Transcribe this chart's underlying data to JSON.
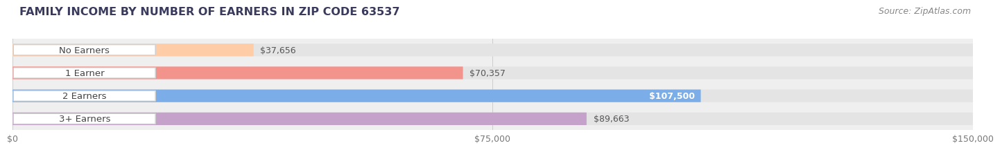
{
  "title": "FAMILY INCOME BY NUMBER OF EARNERS IN ZIP CODE 63537",
  "source": "Source: ZipAtlas.com",
  "categories": [
    "No Earners",
    "1 Earner",
    "2 Earners",
    "3+ Earners"
  ],
  "values": [
    37656,
    70357,
    107500,
    89663
  ],
  "bar_colors": [
    "#FECDA8",
    "#F2938C",
    "#7BAEE8",
    "#C4A2CA"
  ],
  "value_labels": [
    "$37,656",
    "$70,357",
    "$107,500",
    "$89,663"
  ],
  "value_inside": [
    false,
    false,
    true,
    false
  ],
  "xlim": [
    0,
    150000
  ],
  "xticks": [
    0,
    75000,
    150000
  ],
  "xtick_labels": [
    "$0",
    "$75,000",
    "$150,000"
  ],
  "fig_bg_color": "#ffffff",
  "row_bg_color": "#efefef",
  "bar_track_color": "#e4e4e4",
  "title_fontsize": 11.5,
  "source_fontsize": 9,
  "bar_height": 0.55,
  "title_color": "#3a3a5c",
  "source_color": "#888888",
  "label_text_color": "#444444",
  "value_text_color": "#555555",
  "value_inside_color": "#ffffff"
}
